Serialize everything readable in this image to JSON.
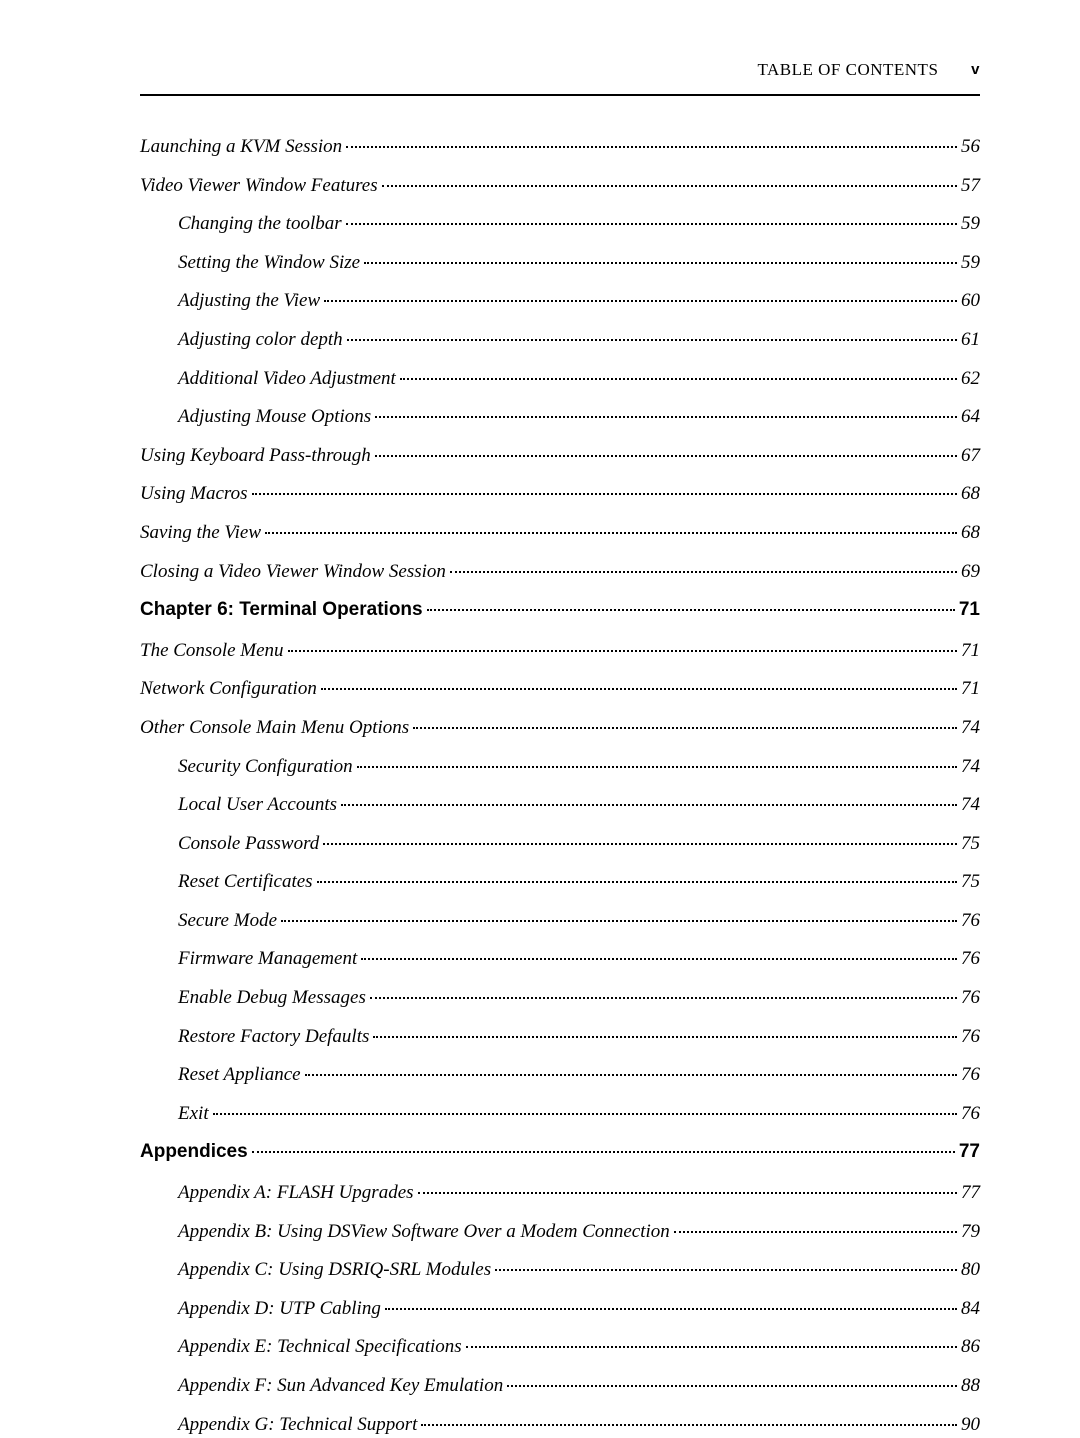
{
  "header": {
    "title": "TABLE OF CONTENTS",
    "page_label": "v"
  },
  "toc": [
    {
      "level": "level0",
      "title": "Launching a KVM Session",
      "page": "56"
    },
    {
      "level": "level0",
      "title": "Video Viewer Window Features",
      "page": "57"
    },
    {
      "level": "level1",
      "title": "Changing the toolbar",
      "page": "59"
    },
    {
      "level": "level1",
      "title": "Setting the Window Size",
      "page": "59"
    },
    {
      "level": "level1",
      "title": "Adjusting the View",
      "page": "60"
    },
    {
      "level": "level1",
      "title": "Adjusting color depth",
      "page": "61"
    },
    {
      "level": "level1",
      "title": "Additional Video Adjustment",
      "page": "62"
    },
    {
      "level": "level1",
      "title": "Adjusting Mouse Options",
      "page": "64"
    },
    {
      "level": "level0",
      "title": "Using Keyboard Pass-through",
      "page": "67"
    },
    {
      "level": "level0",
      "title": "Using Macros",
      "page": "68"
    },
    {
      "level": "level0",
      "title": "Saving the View",
      "page": "68"
    },
    {
      "level": "level0",
      "title": "Closing a Video Viewer Window Session",
      "page": "69"
    },
    {
      "level": "chapter",
      "title": "Chapter 6: Terminal Operations",
      "page": "71"
    },
    {
      "level": "level0",
      "title": "The Console Menu",
      "page": "71"
    },
    {
      "level": "level0",
      "title": "Network Configuration",
      "page": "71"
    },
    {
      "level": "level0",
      "title": "Other Console Main Menu Options",
      "page": "74"
    },
    {
      "level": "level1",
      "title": "Security Configuration",
      "page": "74"
    },
    {
      "level": "level1",
      "title": "Local User Accounts",
      "page": "74"
    },
    {
      "level": "level1",
      "title": "Console Password",
      "page": "75"
    },
    {
      "level": "level1",
      "title": "Reset Certificates",
      "page": "75"
    },
    {
      "level": "level1",
      "title": "Secure Mode",
      "page": "76"
    },
    {
      "level": "level1",
      "title": "Firmware Management",
      "page": "76"
    },
    {
      "level": "level1",
      "title": "Enable Debug Messages",
      "page": "76"
    },
    {
      "level": "level1",
      "title": "Restore Factory Defaults",
      "page": "76"
    },
    {
      "level": "level1",
      "title": "Reset Appliance",
      "page": "76"
    },
    {
      "level": "level1",
      "title": "Exit",
      "page": "76"
    },
    {
      "level": "chapter",
      "title": "Appendices",
      "page": "77"
    },
    {
      "level": "level1",
      "title": "Appendix A: FLASH Upgrades",
      "page": "77"
    },
    {
      "level": "level1",
      "title": "Appendix B: Using DSView Software Over a Modem Connection",
      "page": "79"
    },
    {
      "level": "level1",
      "title": "Appendix C: Using DSRIQ-SRL Modules",
      "page": "80"
    },
    {
      "level": "level1",
      "title": "Appendix D: UTP Cabling",
      "page": "84"
    },
    {
      "level": "level1",
      "title": "Appendix E: Technical Specifications",
      "page": "86"
    },
    {
      "level": "level1",
      "title": "Appendix F: Sun Advanced Key Emulation",
      "page": "88"
    },
    {
      "level": "level1",
      "title": "Appendix G: Technical Support",
      "page": "90"
    }
  ]
}
